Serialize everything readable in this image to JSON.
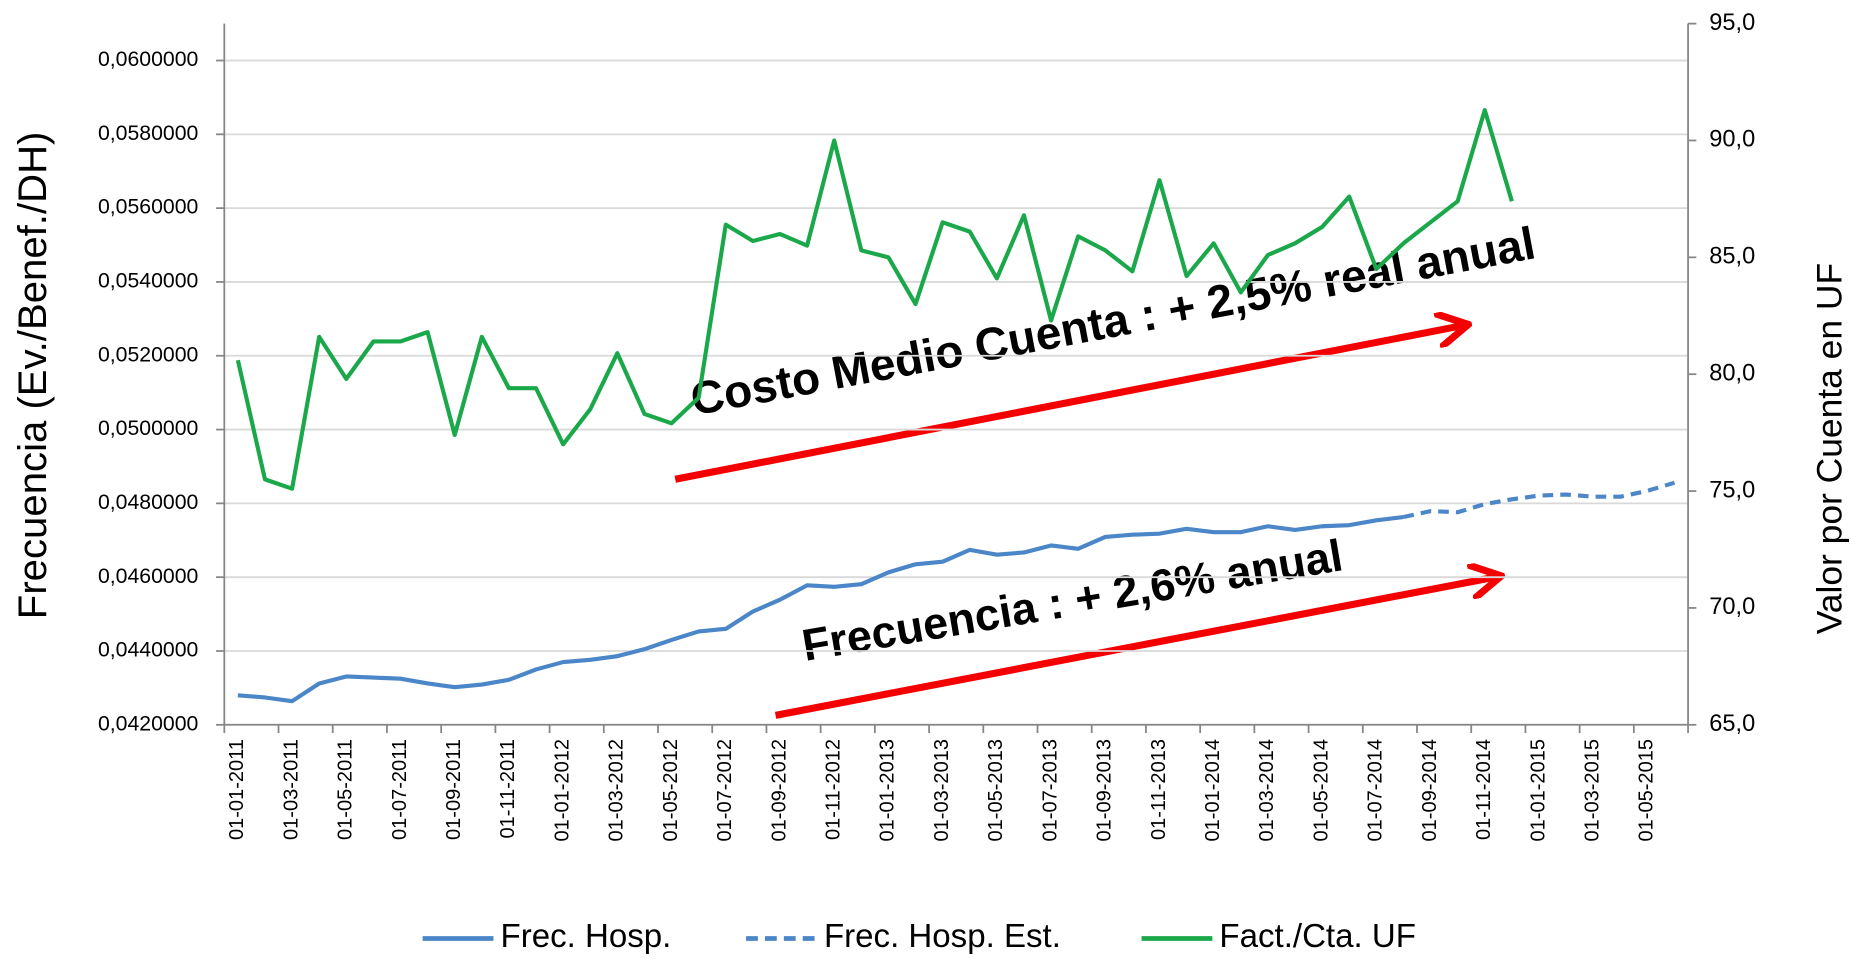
{
  "chart_data": {
    "type": "line",
    "y_axis_label": "Frecuencia (Ev./Benef./DH)",
    "y2_axis_label": "Valor por Cuenta en UF",
    "categories": [
      "01-01-2011",
      null,
      "01-03-2011",
      null,
      "01-05-2011",
      null,
      "01-07-2011",
      null,
      "01-09-2011",
      null,
      "01-11-2011",
      null,
      "01-01-2012",
      null,
      "01-03-2012",
      null,
      "01-05-2012",
      null,
      "01-07-2012",
      null,
      "01-09-2012",
      null,
      "01-11-2012",
      null,
      "01-01-2013",
      null,
      "01-03-2013",
      null,
      "01-05-2013",
      null,
      "01-07-2013",
      null,
      "01-09-2013",
      null,
      "01-11-2013",
      null,
      "01-01-2014",
      null,
      "01-03-2014",
      null,
      "01-05-2014",
      null,
      "01-07-2014",
      null,
      "01-09-2014",
      null,
      "01-11-2014",
      null,
      "01-01-2015",
      null,
      "01-03-2015",
      null,
      "01-05-2015",
      null
    ],
    "series": [
      {
        "name": "Frec. Hosp.",
        "color": "#4a86c8",
        "axis": "y",
        "dashed": false,
        "values": [
          0.0428,
          0.04274,
          0.04264,
          0.04312,
          0.04331,
          0.04328,
          0.04325,
          0.04312,
          0.04302,
          0.04309,
          0.04322,
          0.0435,
          0.0437,
          0.04376,
          0.04386,
          0.04405,
          0.0443,
          0.04453,
          0.0446,
          0.04507,
          0.04539,
          0.04578,
          0.04574,
          0.04581,
          0.04613,
          0.04635,
          0.04642,
          0.04674,
          0.04661,
          0.04667,
          0.04686,
          0.04677,
          0.04709,
          0.04715,
          0.04718,
          0.04731,
          0.04722,
          0.04722,
          0.04738,
          0.04728,
          0.04738,
          0.04741,
          0.04754,
          0.04763,
          null,
          null,
          null,
          null,
          null,
          null,
          null,
          null,
          null,
          null
        ]
      },
      {
        "name": "Frec. Hosp. Est.",
        "color": "#4a86c8",
        "axis": "y",
        "dashed": true,
        "values": [
          null,
          null,
          null,
          null,
          null,
          null,
          null,
          null,
          null,
          null,
          null,
          null,
          null,
          null,
          null,
          null,
          null,
          null,
          null,
          null,
          null,
          null,
          null,
          null,
          null,
          null,
          null,
          null,
          null,
          null,
          null,
          null,
          null,
          null,
          null,
          null,
          null,
          null,
          null,
          null,
          null,
          null,
          null,
          0.04763,
          0.04779,
          0.04776,
          0.04798,
          0.04811,
          0.04821,
          0.04824,
          0.04818,
          0.04818,
          0.04834,
          0.04856
        ]
      },
      {
        "name": "Fact./Cta. UF",
        "color": "#1aa84a",
        "axis": "y2",
        "dashed": false,
        "values": [
          80.6,
          75.5,
          75.1,
          81.6,
          79.8,
          81.4,
          81.4,
          81.8,
          77.4,
          81.6,
          79.4,
          79.4,
          77.0,
          78.5,
          80.9,
          78.3,
          77.9,
          79.0,
          86.4,
          85.7,
          86.0,
          85.5,
          90.0,
          85.3,
          85.0,
          83.0,
          86.5,
          86.1,
          84.1,
          86.8,
          82.3,
          85.9,
          85.3,
          84.4,
          88.3,
          84.2,
          85.6,
          83.5,
          85.1,
          85.6,
          86.3,
          87.6,
          84.5,
          85.6,
          86.5,
          87.4,
          91.3,
          87.4,
          null,
          null,
          null,
          null,
          null,
          null
        ]
      }
    ],
    "ylim": [
      0.042,
      0.061
    ],
    "yticks": [
      {
        "value": 0.042,
        "label": "0,0420000"
      },
      {
        "value": 0.044,
        "label": "0,0440000"
      },
      {
        "value": 0.046,
        "label": "0,0460000"
      },
      {
        "value": 0.048,
        "label": "0,0480000"
      },
      {
        "value": 0.05,
        "label": "0,0500000"
      },
      {
        "value": 0.052,
        "label": "0,0520000"
      },
      {
        "value": 0.054,
        "label": "0,0540000"
      },
      {
        "value": 0.056,
        "label": "0,0560000"
      },
      {
        "value": 0.058,
        "label": "0,0580000"
      },
      {
        "value": 0.06,
        "label": "0,0600000"
      }
    ],
    "y2lim": [
      65,
      95
    ],
    "y2ticks": [
      {
        "value": 65,
        "label": "65,0"
      },
      {
        "value": 70,
        "label": "70,0"
      },
      {
        "value": 75,
        "label": "75,0"
      },
      {
        "value": 80,
        "label": "80,0"
      },
      {
        "value": 85,
        "label": "85,0"
      },
      {
        "value": 90,
        "label": "90,0"
      },
      {
        "value": 95,
        "label": "95,0"
      }
    ],
    "grid": true,
    "legend": "bottom",
    "annotations": [
      {
        "text": "Costo Medio Cuenta : + 2,5% real anual"
      },
      {
        "text": "Frecuencia : + 2,6% anual"
      }
    ]
  }
}
